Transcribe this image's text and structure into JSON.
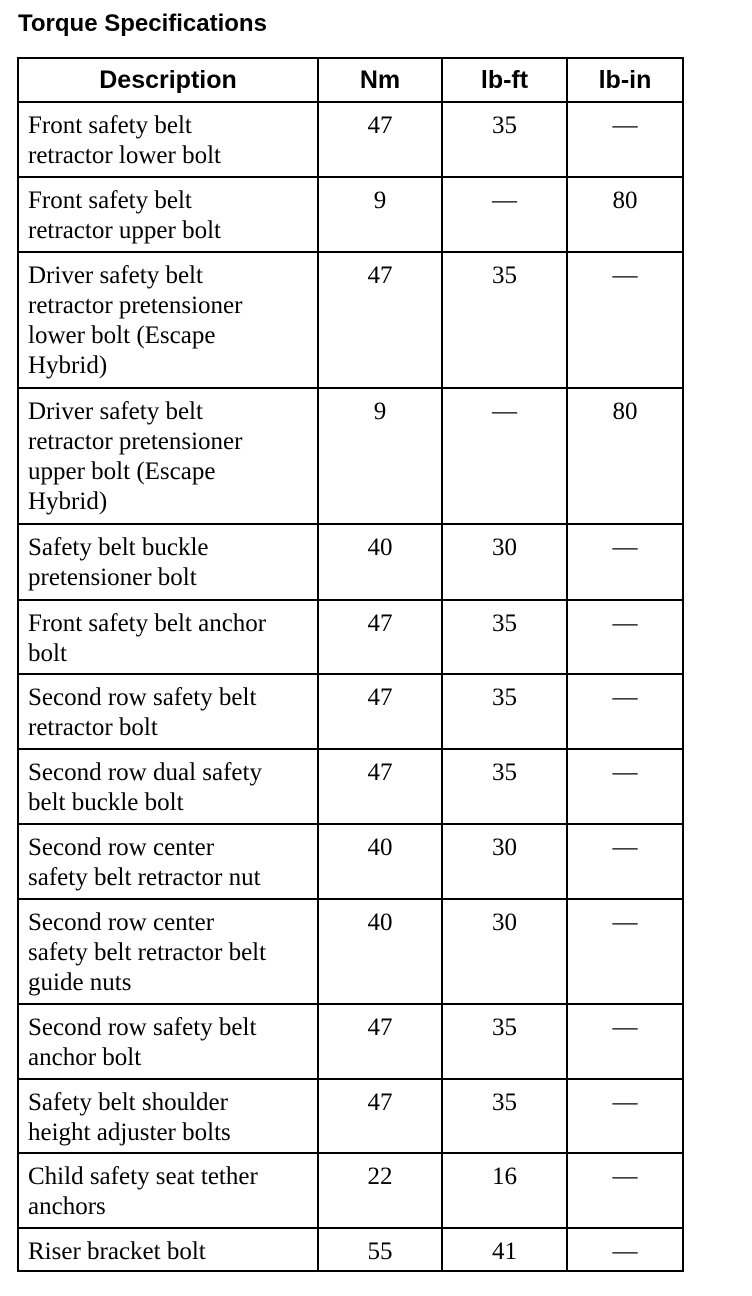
{
  "title": "Torque Specifications",
  "columns": [
    "Description",
    "Nm",
    "lb-ft",
    "lb-in"
  ],
  "rows": [
    {
      "description": "Front safety belt\nretractor lower bolt",
      "nm": "47",
      "lbft": "35",
      "lbin": "—"
    },
    {
      "description": "Front safety belt\nretractor upper bolt",
      "nm": "9",
      "lbft": "—",
      "lbin": "80"
    },
    {
      "description": "Driver safety belt\nretractor pretensioner\nlower bolt (Escape\nHybrid)",
      "nm": "47",
      "lbft": "35",
      "lbin": "—"
    },
    {
      "description": "Driver safety belt\nretractor pretensioner\nupper bolt (Escape\nHybrid)",
      "nm": "9",
      "lbft": "—",
      "lbin": "80"
    },
    {
      "description": "Safety belt buckle\npretensioner bolt",
      "nm": "40",
      "lbft": "30",
      "lbin": "—"
    },
    {
      "description": "Front safety belt anchor\nbolt",
      "nm": "47",
      "lbft": "35",
      "lbin": "—"
    },
    {
      "description": "Second row safety belt\nretractor bolt",
      "nm": "47",
      "lbft": "35",
      "lbin": "—"
    },
    {
      "description": "Second row dual safety\nbelt buckle bolt",
      "nm": "47",
      "lbft": "35",
      "lbin": "—"
    },
    {
      "description": "Second row center\nsafety belt retractor nut",
      "nm": "40",
      "lbft": "30",
      "lbin": "—"
    },
    {
      "description": "Second row center\nsafety belt retractor belt\nguide nuts",
      "nm": "40",
      "lbft": "30",
      "lbin": "—"
    },
    {
      "description": "Second row safety belt\nanchor bolt",
      "nm": "47",
      "lbft": "35",
      "lbin": "—"
    },
    {
      "description": "Safety belt shoulder\nheight adjuster bolts",
      "nm": "47",
      "lbft": "35",
      "lbin": "—"
    },
    {
      "description": "Child safety seat tether\nanchors",
      "nm": "22",
      "lbft": "16",
      "lbin": "—"
    },
    {
      "description": "Riser bracket bolt",
      "nm": "55",
      "lbft": "41",
      "lbin": "—"
    }
  ]
}
